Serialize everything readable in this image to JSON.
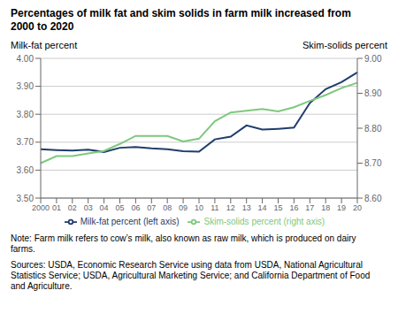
{
  "chart_data": {
    "type": "line",
    "title": "Percentages of milk fat and skim solids in farm milk increased from\n2000 to 2020",
    "ylabel": "Milk-fat percent",
    "y2label": "Skim-solids percent",
    "categories": [
      "2000",
      "01",
      "02",
      "03",
      "04",
      "05",
      "06",
      "07",
      "08",
      "09",
      "10",
      "11",
      "12",
      "13",
      "14",
      "15",
      "16",
      "17",
      "18",
      "19",
      "20"
    ],
    "series": [
      {
        "name": "Milk-fat percent (left axis)",
        "color": "#1f3d6b",
        "axis": "y",
        "values": [
          3.675,
          3.672,
          3.67,
          3.673,
          3.665,
          3.68,
          3.683,
          3.678,
          3.675,
          3.668,
          3.666,
          3.71,
          3.72,
          3.76,
          3.745,
          3.748,
          3.752,
          3.84,
          3.89,
          3.915,
          3.95
        ]
      },
      {
        "name": "Skim-solids percent (right axis)",
        "color": "#7ec87e",
        "axis": "y2",
        "values": [
          8.7,
          8.72,
          8.72,
          8.728,
          8.735,
          8.755,
          8.778,
          8.778,
          8.778,
          8.762,
          8.77,
          8.82,
          8.845,
          8.85,
          8.855,
          8.848,
          8.86,
          8.878,
          8.895,
          8.915,
          8.93
        ]
      }
    ],
    "ylim": [
      3.5,
      4.0
    ],
    "yticks": [
      {
        "value": 3.5,
        "label": "3.50"
      },
      {
        "value": 3.6,
        "label": "3.60"
      },
      {
        "value": 3.7,
        "label": "3.70"
      },
      {
        "value": 3.8,
        "label": "3.80"
      },
      {
        "value": 3.9,
        "label": "3.90"
      },
      {
        "value": 4.0,
        "label": "4.00"
      }
    ],
    "y2lim": [
      8.6,
      9.0
    ],
    "y2ticks": [
      {
        "value": 8.6,
        "label": "8.60"
      },
      {
        "value": 8.7,
        "label": "8.70"
      },
      {
        "value": 8.8,
        "label": "8.80"
      },
      {
        "value": 8.9,
        "label": "8.90"
      },
      {
        "value": 9.0,
        "label": "9.00"
      }
    ],
    "grid": true,
    "legend": "bottom",
    "annotations": [
      "Note: Farm milk refers to cow’s milk, also known as raw milk, which is produced on dairy\nfarms.",
      "Sources: USDA, Economic Research Service using data from USDA, National Agricultural\nStatistics Service; USDA, Agricultural Marketing Service; and California Department of Food\nand Agriculture."
    ]
  }
}
